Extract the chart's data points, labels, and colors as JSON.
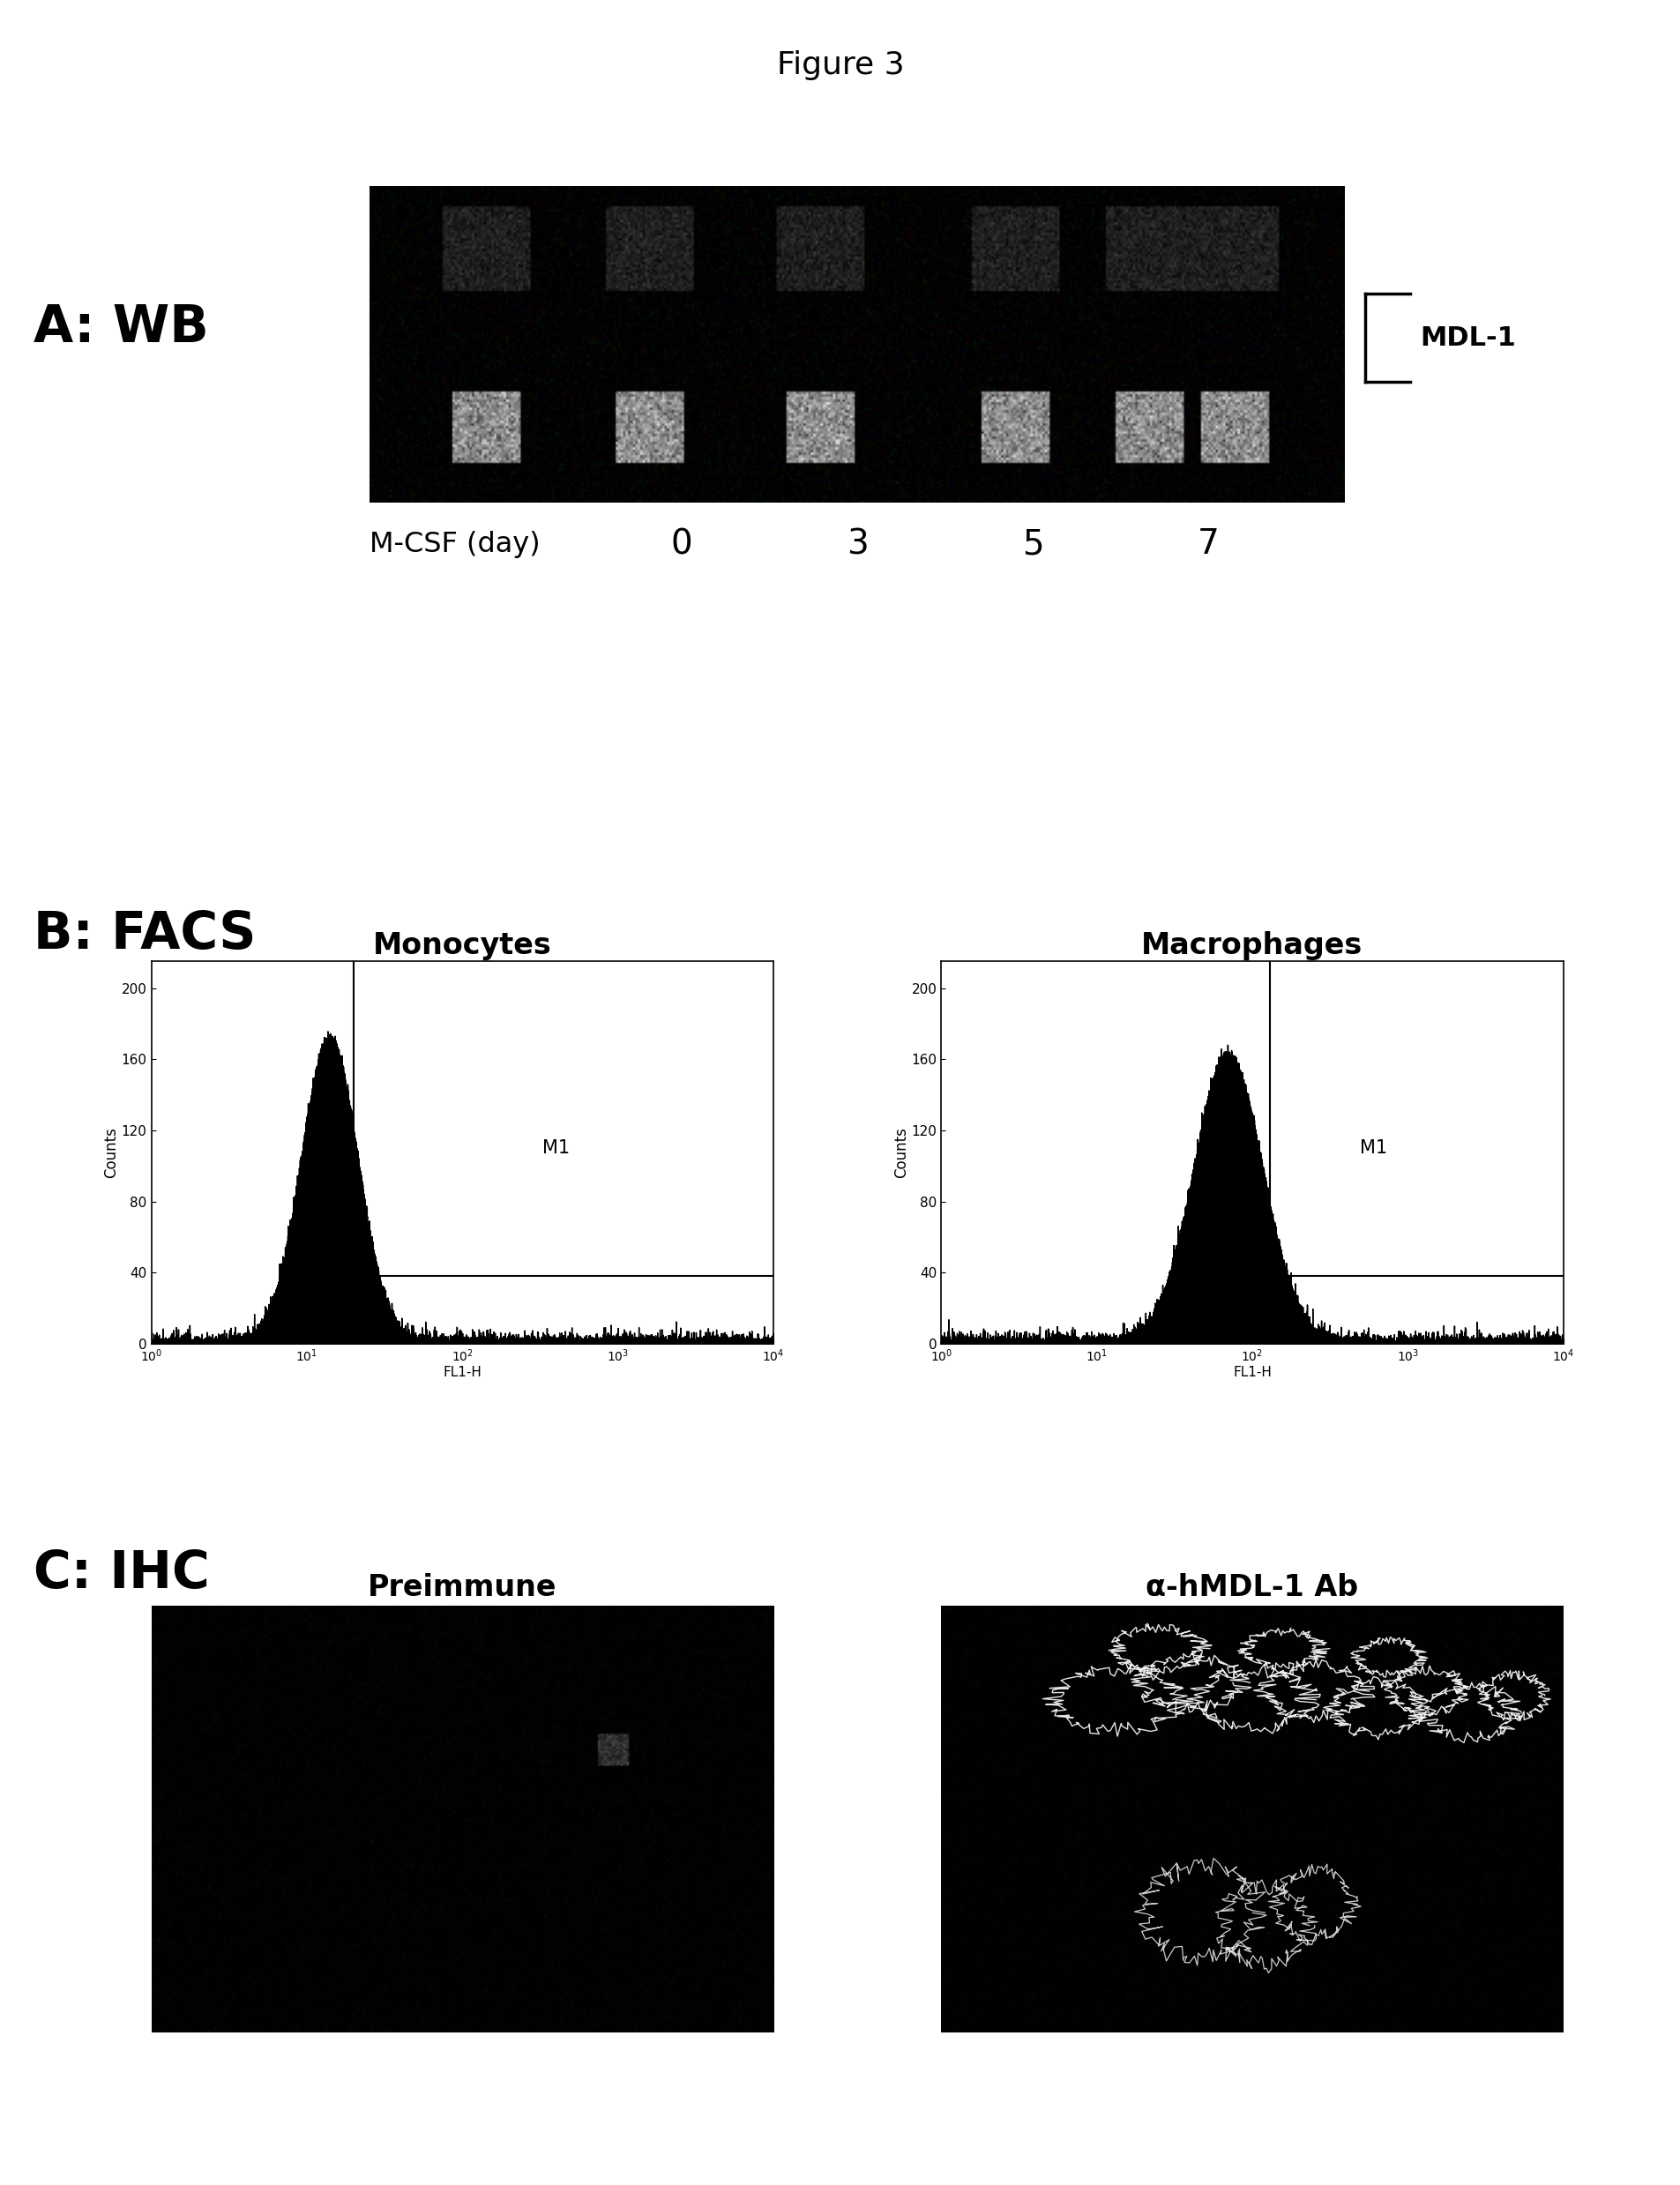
{
  "title": "Figure 3",
  "panel_A_label": "A: WB",
  "panel_B_label": "B: FACS",
  "panel_C_label": "C: IHC",
  "wb_label": "MDL-1",
  "wb_xticklabels": [
    "0",
    "3",
    "5",
    "7"
  ],
  "wb_xlabel": "M-CSF (day)",
  "facs_left_title": "Monocytes",
  "facs_right_title": "Macrophages",
  "facs_m1_label": "M1",
  "facs_xlabel": "FL1-H",
  "facs_ylabel": "Counts",
  "facs_yticks": [
    0,
    40,
    80,
    120,
    160,
    200
  ],
  "facs_xtick_labels": [
    "10⁰",
    "10¹",
    "10²",
    "10³",
    "10⁴"
  ],
  "ihc_left_title": "Preimmune",
  "ihc_right_title": "α-hMDL-1 Ab",
  "bg_color": "#ffffff",
  "wb_bg": "#111111",
  "ihc_left_bg": "#080808",
  "ihc_right_bg": "#0a0a0a"
}
